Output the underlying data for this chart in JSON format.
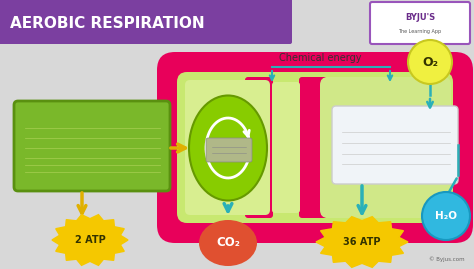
{
  "bg_color": "#d8d8d8",
  "title_bg": "#7b3fa0",
  "title_text": "AEROBIC RESPIRATION",
  "title_color": "#ffffff",
  "title_fontsize": 11,
  "subtitle": "Chemical energy",
  "byline": "© Byjus.com",
  "mito_outer_color": "#e8005a",
  "mito_inner_color": "#c8e870",
  "green_box_color": "#7ab82a",
  "green_box_edge": "#5a9010",
  "white_box_color": "#f0f4f8",
  "white_box_edge": "#cccccc",
  "krebs_color": "#88cc00",
  "krebs_edge": "#669900",
  "atp2_color": "#f5c800",
  "atp2_text": "2 ATP",
  "co2_color": "#e05030",
  "co2_text": "CO₂",
  "atp36_color": "#f5c800",
  "atp36_text": "36 ATP",
  "o2_color": "#f0f040",
  "o2_text": "O₂",
  "h2o_color": "#30b8e0",
  "h2o_text": "H₂O",
  "teal": "#2ab0b8",
  "gold": "#e0b000"
}
